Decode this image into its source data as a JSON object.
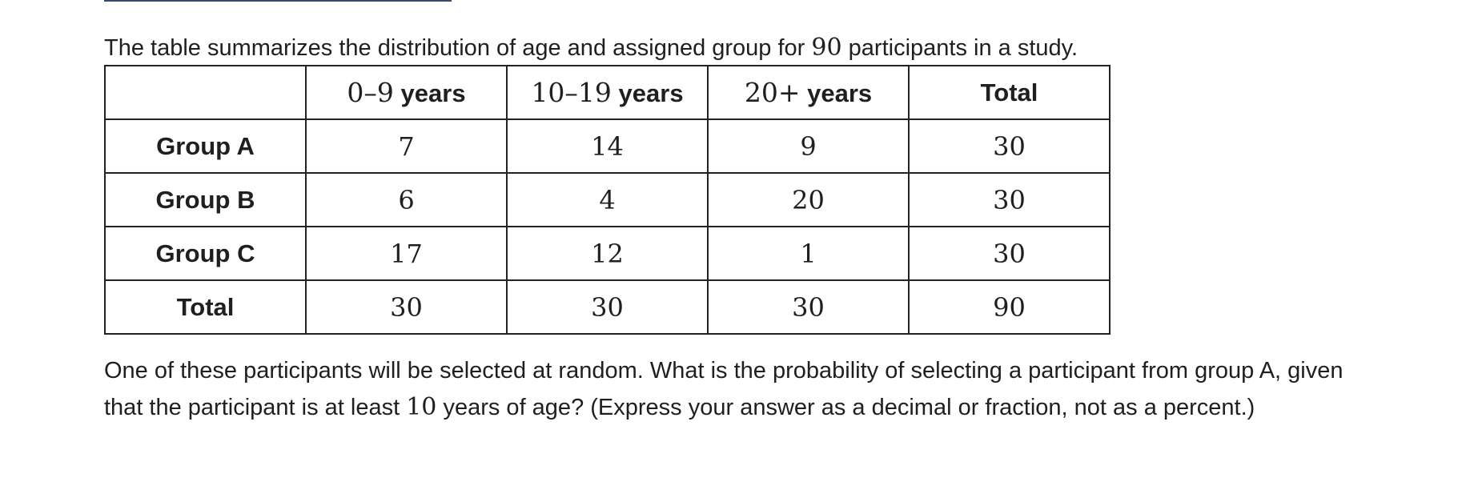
{
  "intro": {
    "before": "The table summarizes the distribution of age and assigned group for ",
    "count": "90",
    "after": " participants in a study."
  },
  "table": {
    "header": [
      {
        "range": "",
        "unit": ""
      },
      {
        "range": "0–9",
        "unit": " years"
      },
      {
        "range": "10–19",
        "unit": " years"
      },
      {
        "range": "20+",
        "unit": " years"
      },
      {
        "range": "",
        "unit": "Total"
      }
    ],
    "rows": [
      {
        "label": "Group A",
        "values": [
          "7",
          "14",
          "9",
          "30"
        ]
      },
      {
        "label": "Group B",
        "values": [
          "6",
          "4",
          "20",
          "30"
        ]
      },
      {
        "label": "Group C",
        "values": [
          "17",
          "12",
          "1",
          "30"
        ]
      },
      {
        "label": "Total",
        "values": [
          "30",
          "30",
          "30",
          "90"
        ]
      }
    ]
  },
  "question": {
    "before": "One of these participants will be selected at random. What is the probability of selecting a participant from group A, given that the participant is at least ",
    "number": "10",
    "after": " years of age? (Express your answer as a decimal or fraction, not as a percent.)"
  }
}
